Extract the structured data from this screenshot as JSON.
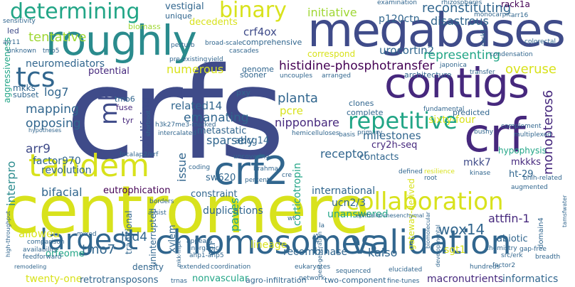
{
  "palette": {
    "yellow": "#d8e21c",
    "lime": "#9fd734",
    "green": "#4fc26a",
    "teal": "#21a586",
    "cyan": "#2a8b8d",
    "steel": "#31668e",
    "blue": "#3f4b89",
    "indigo": "#46287d",
    "purple": "#440154"
  },
  "words": {
    "crfs": "crfs",
    "centromere": "centromere",
    "megabases": "megabases",
    "roughly": "roughly",
    "contigs": "contigs",
    "crf": "crf",
    "crf2": "crf2",
    "chromosomes": "chromosomes",
    "validation": "validation",
    "tandem": "tandem",
    "largest": "largest",
    "collaboration": "collaboration",
    "tcs": "tcs",
    "determining": "determining",
    "binary": "binary",
    "repetitive": "repetitive",
    "reconstituting": "reconstituting",
    "histidine": "histidine-phosphotransfer",
    "mb": "mb",
    "tentative": "tentative",
    "initiative": "initiative",
    "disastrous": "disastrous",
    "crf4ox": "crf4ox",
    "p120ctn": "p120ctn",
    "urocortin2": "urocortin2",
    "representing": "representing",
    "overuse": "overuse",
    "numerous": "numerous",
    "neuromediators": "neuromediators",
    "potential": "potential",
    "log7": "log7",
    "mapping": "mapping",
    "opposing": "opposing",
    "related14": "related14",
    "emanating": "emanating",
    "planta": "planta",
    "pcre": "pcre",
    "nipponbare": "nipponbare",
    "sparsely": "sparsely",
    "metastatic": "metastatic",
    "milestones": "milestones",
    "cry2hseq": "cry2h-seq",
    "sixtyfour": "sixty-four",
    "receptor": "receptor",
    "contacts": "contacts",
    "abcg14": "abcg14",
    "mkk7": "mkk7",
    "mkkks": "mkkks",
    "ht29": "ht-29",
    "hypophysis": "hypophysis",
    "monopteros6": "monopteros6",
    "arr9": "arr9",
    "factor970": "factor970",
    "interpro": "interpro",
    "revolution": "revolution",
    "bifacial": "bifacial",
    "eutrophication": "eutrophication",
    "solidifying": "solidifying",
    "issue": "issue",
    "sw620": "sw620",
    "constraint": "constraint",
    "international": "international",
    "ucn23": "ucn2/3",
    "duplications": "duplications",
    "unanswered": "unanswered",
    "attfin1": "attfin-1",
    "wox14": "wox14",
    "paves": "paves",
    "lineage": "lineage",
    "allowed": "allowed",
    "tmo7": "tmo7",
    "lbd4": "lbd4",
    "kaiso": "kaiso",
    "sgt1": "sgt1",
    "abiotic": "abiotic",
    "recombinase": "recombinase",
    "density": "density",
    "twentyone": "twenty-one",
    "retrotransposons": "retrotransposons",
    "nonvascular": "nonvascular",
    "agro": "agro-infiltration",
    "twocomponent": "two-component",
    "macronutrients": "macronutrients",
    "informatics": "informatics",
    "corticotropin": "corticotropin",
    "gateway": "gateway-derived",
    "orfeome": "orfeome",
    "xylem": "xylem",
    "traditional": "traditional",
    "uninterrupted": "uninterrupted",
    "vestigial": "vestigial",
    "unique": "unique",
    "decedents": "decedents",
    "aggressiveness": "aggressiveness",
    "mkks": "mkks",
    "subset": "subset",
    "tmo6": "tmo6",
    "fuse": "fuse",
    "tyr": "tyr",
    "pxy": "pxy",
    "genome": "genome",
    "sooner": "sooner",
    "architecture": "architecture",
    "clones": "clones",
    "complete": "complete",
    "predicted": "predicted",
    "fundamental": "fundamental",
    "correspond": "correspond",
    "comprehensive": "comprehensive",
    "biomass": "biomass",
    "led": "led",
    "rack1a": "rack1a",
    "rack1": "rack1",
    "examination": "examination",
    "rhizospheres": "rhizospheres",
    "monocarpic": "monocarpic",
    "arr16": "arr16",
    "colorectal": "colorectal",
    "condensation": "condensation",
    "japonica": "japonica",
    "transfer": "transfer",
    "bhlhrelated": "bhlh-related",
    "cascades": "cascades",
    "yield": "yield",
    "preexisting": "pre-existing",
    "perturb": "perturb",
    "broadscale": "broad-scale",
    "sensitivity": "sensitivity",
    "arr11": "arr11",
    "unknown": "unknown",
    "tmo5": "tmo5",
    "uncouples": "uncouples",
    "arranged": "arranged",
    "hypotheses": "hypotheses",
    "h3k27me3": "h3k27me3-marked",
    "intercalated": "intercalated",
    "shortroot": "shortroot",
    "ap2erf": "ap2/erf",
    "focal": "focal",
    "uncovering": "uncovering",
    "hemicelluloses": "hemicelluloses",
    "basis": "basis",
    "primary": "primary",
    "bushy": "bushy",
    "complement": "complement",
    "multiplexed": "multiplexed",
    "brahma": "brahma",
    "cre": "cre",
    "percent": "percent",
    "network": "network",
    "coding": "coding",
    "defined": "defined",
    "resilience": "resilience",
    "root": "root",
    "kinase": "kinase",
    "augmented": "augmented",
    "borders": "borders",
    "epithelial": "epithelial-mesenchymal",
    "appears": "appears",
    "inorganic": "inorganic",
    "mkkmpk": "mkk-mpk",
    "ahp1": "ahp1-ahp5",
    "extended": "extended",
    "coordination": "coordination",
    "eukaryotes": "eukaryotes",
    "nextgen": "next-generation",
    "sequenced": "sequenced",
    "elucidated": "elucidated",
    "chemistry": "chemistry",
    "gapfree": "gap-free",
    "breadth": "breadth",
    "srcerk": "src/erk",
    "factor2": "factor2",
    "domain4": "domain4",
    "tamsfwater": "tamsfwater",
    "comparison": "comparison",
    "availability": "availability",
    "feedforward": "feedforward",
    "highthroughput": "high-throughput",
    "remodeling": "remodeling",
    "mixed": "mixed",
    "assist": "assist",
    "trnas": "trnas",
    "finetunes": "fine-tunes",
    "hundreds": "hundreds",
    "en": "en",
    "wt": "wt",
    "la": "la",
    "sfs": "sfs",
    "biomolecular": "biomolecular",
    "developmental": "developmental"
  }
}
